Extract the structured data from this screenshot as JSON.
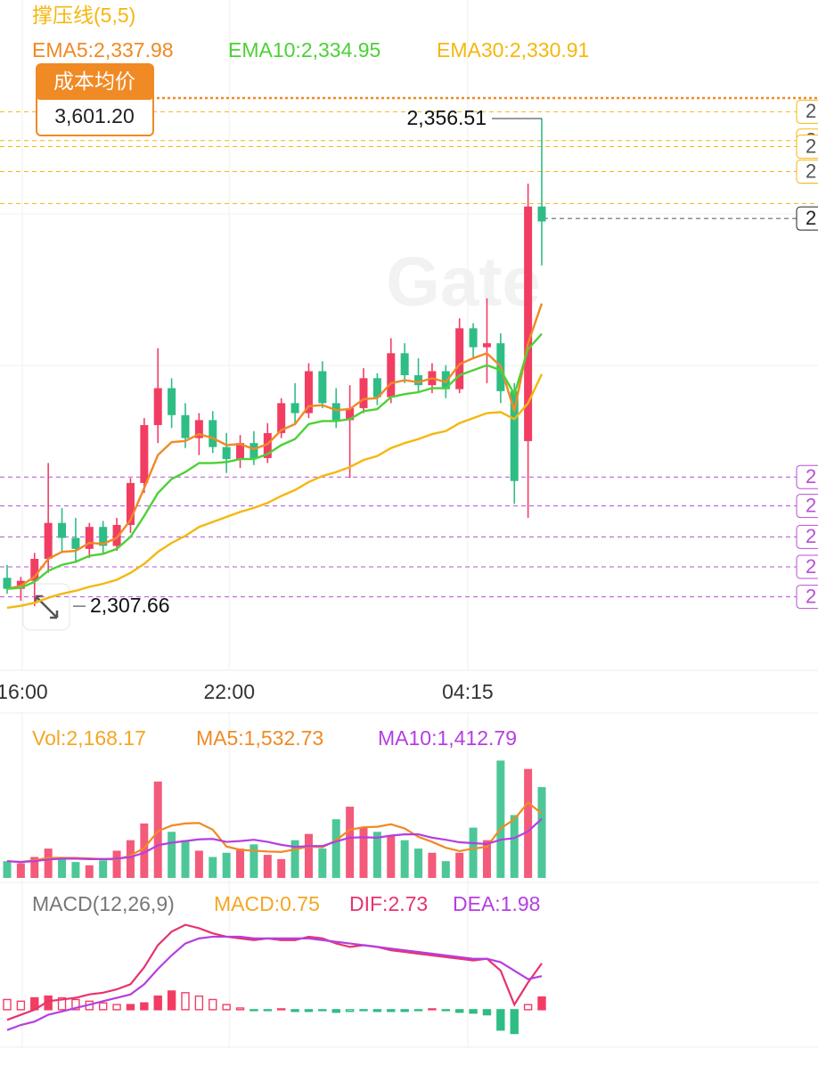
{
  "chart_data": [
    {
      "type": "candlestick",
      "title": "撑压线(5,5)",
      "watermark": "Gate",
      "up_color": "#f23d63",
      "down_color": "#2ebd85",
      "ylim": [
        2301.24,
        2368.39
      ],
      "xticks": [
        {
          "value": 1.1,
          "label": "16:00"
        },
        {
          "value": 16.2,
          "label": "22:00"
        },
        {
          "value": 33.6,
          "label": "04:15"
        }
      ],
      "open": [
        2310.5,
        2309.4,
        2310.2,
        2312.4,
        2316.0,
        2314.5,
        2313.4,
        2315.6,
        2313.7,
        2315.8,
        2320.0,
        2325.8,
        2329.5,
        2326.8,
        2324.5,
        2326.3,
        2323.6,
        2322.4,
        2324.0,
        2322.5,
        2325.0,
        2328.0,
        2327.0,
        2331.2,
        2328.0,
        2326.3,
        2327.5,
        2330.5,
        2328.6,
        2333.0,
        2330.8,
        2329.8,
        2331.2,
        2329.4,
        2335.5,
        2333.6,
        2334.0,
        2329.2,
        2324.2,
        2347.7
      ],
      "high": [
        2311.8,
        2310.6,
        2313.0,
        2322.0,
        2317.5,
        2316.5,
        2316.0,
        2316.2,
        2316.5,
        2320.5,
        2326.5,
        2333.5,
        2330.5,
        2328.0,
        2327.0,
        2327.2,
        2325.0,
        2324.8,
        2325.2,
        2326.0,
        2328.5,
        2330.0,
        2332.0,
        2332.2,
        2329.5,
        2329.8,
        2331.5,
        2331.0,
        2334.5,
        2334.0,
        2332.5,
        2332.0,
        2331.8,
        2336.5,
        2336.0,
        2338.5,
        2335.0,
        2330.0,
        2350.0,
        2356.51
      ],
      "low": [
        2308.9,
        2308.2,
        2307.66,
        2311.0,
        2313.0,
        2312.0,
        2312.5,
        2312.8,
        2313.2,
        2315.0,
        2319.0,
        2324.0,
        2325.5,
        2323.5,
        2322.8,
        2323.0,
        2321.0,
        2321.5,
        2321.8,
        2322.0,
        2324.5,
        2326.0,
        2326.5,
        2327.5,
        2325.5,
        2320.5,
        2327.0,
        2327.8,
        2328.0,
        2330.0,
        2329.0,
        2329.0,
        2328.5,
        2329.0,
        2332.5,
        2330.0,
        2328.0,
        2317.9,
        2316.5,
        2341.8
      ],
      "close": [
        2309.4,
        2310.2,
        2312.4,
        2316.0,
        2314.5,
        2313.4,
        2315.6,
        2313.7,
        2315.8,
        2320.0,
        2325.8,
        2329.5,
        2326.8,
        2324.5,
        2326.3,
        2323.6,
        2322.4,
        2324.0,
        2322.5,
        2325.0,
        2328.0,
        2327.0,
        2331.2,
        2328.0,
        2326.3,
        2327.5,
        2330.5,
        2328.6,
        2333.0,
        2330.8,
        2329.8,
        2331.2,
        2329.4,
        2335.5,
        2333.6,
        2334.0,
        2329.2,
        2320.2,
        2347.7,
        2346.2
      ],
      "lines": [
        {
          "name": "EMA5:2,337.98",
          "color": "#f08a24",
          "values": [
            2309.4,
            2309.7,
            2310.6,
            2312.4,
            2313.1,
            2313.2,
            2314.0,
            2313.9,
            2314.5,
            2316.3,
            2319.5,
            2322.8,
            2324.1,
            2324.2,
            2324.9,
            2324.5,
            2323.8,
            2323.9,
            2323.4,
            2323.9,
            2325.3,
            2325.9,
            2327.7,
            2327.8,
            2327.3,
            2327.4,
            2328.4,
            2328.5,
            2330.0,
            2330.3,
            2330.1,
            2330.5,
            2330.1,
            2331.9,
            2332.5,
            2333.0,
            2331.7,
            2327.2,
            2334.0,
            2337.98
          ]
        },
        {
          "name": "EMA10:2,334.95",
          "color": "#4cd137",
          "values": [
            2309.4,
            2309.5,
            2310.1,
            2311.2,
            2311.8,
            2312.1,
            2312.7,
            2312.9,
            2313.4,
            2314.6,
            2316.7,
            2319.0,
            2320.4,
            2321.1,
            2322.0,
            2322.0,
            2322.1,
            2322.4,
            2322.4,
            2322.9,
            2323.8,
            2324.4,
            2325.9,
            2326.2,
            2326.2,
            2326.4,
            2327.2,
            2327.4,
            2328.6,
            2328.9,
            2329.1,
            2329.5,
            2329.5,
            2330.8,
            2331.3,
            2331.8,
            2331.3,
            2328.9,
            2333.4,
            2334.95
          ]
        },
        {
          "name": "EMA30:2,330.91",
          "color": "#f5b70f",
          "values": [
            2307.5,
            2307.7,
            2308.0,
            2308.5,
            2308.9,
            2309.2,
            2309.6,
            2309.9,
            2310.3,
            2311.0,
            2311.9,
            2313.1,
            2314.0,
            2314.7,
            2315.6,
            2316.1,
            2316.6,
            2317.1,
            2317.5,
            2318.0,
            2318.7,
            2319.3,
            2320.1,
            2320.7,
            2321.1,
            2321.6,
            2322.3,
            2322.7,
            2323.5,
            2324.0,
            2324.4,
            2324.9,
            2325.2,
            2326.0,
            2326.5,
            2327.0,
            2327.1,
            2326.4,
            2328.0,
            2330.91
          ]
        }
      ],
      "high_label": "2,356.51",
      "low_label": "2,307.66",
      "cost": {
        "title": "成本均价",
        "value": 3601.2,
        "label": "3,601.20",
        "color": "#f08a24"
      },
      "resistance_color": "#f5b70f",
      "resistance_lines": [
        {
          "value": 2357.2,
          "label": "2"
        },
        {
          "value": 2354.3,
          "label": "2"
        },
        {
          "value": 2353.7,
          "label": "2"
        },
        {
          "value": 2351.2,
          "label": "2"
        },
        {
          "value": 2348.0,
          "label": "2"
        }
      ],
      "support_color": "#b84fd6",
      "support_lines": [
        {
          "value": 2320.6,
          "label": "2"
        },
        {
          "value": 2317.7,
          "label": "2"
        },
        {
          "value": 2314.6,
          "label": "2"
        },
        {
          "value": 2311.6,
          "label": "2"
        },
        {
          "value": 2308.6,
          "label": "2"
        }
      ],
      "last_price": {
        "value": 2346.5,
        "label": "2"
      }
    },
    {
      "type": "bar",
      "ylim": [
        0,
        2850
      ],
      "series": [
        {
          "name": "Vol:2,168.17",
          "color": "#f5a623",
          "values": [
            400,
            350,
            500,
            700,
            450,
            380,
            300,
            420,
            650,
            900,
            1300,
            2300,
            1100,
            900,
            650,
            500,
            600,
            700,
            800,
            550,
            450,
            900,
            1050,
            700,
            1400,
            1700,
            1200,
            1100,
            1000,
            900,
            700,
            600,
            400,
            600,
            1200,
            900,
            2800,
            1500,
            2600,
            2168.17
          ]
        },
        {
          "name": "MA5:1,532.73",
          "color": "#f08a24",
          "values": [
            400,
            380,
            420,
            480,
            480,
            476,
            466,
            450,
            440,
            534,
            714,
            1114,
            1250,
            1300,
            1310,
            1150,
            750,
            670,
            650,
            630,
            620,
            680,
            750,
            730,
            900,
            1150,
            1210,
            1220,
            1280,
            1180,
            980,
            860,
            720,
            640,
            700,
            740,
            1180,
            1400,
            1800,
            1532.73
          ]
        },
        {
          "name": "MA10:1,412.79",
          "color": "#b43fe0",
          "values": [
            400,
            380,
            400,
            440,
            460,
            460,
            450,
            450,
            460,
            500,
            600,
            780,
            840,
            880,
            920,
            930,
            860,
            880,
            910,
            860,
            790,
            740,
            760,
            760,
            870,
            960,
            970,
            960,
            1010,
            1040,
            1040,
            960,
            910,
            850,
            830,
            810,
            910,
            950,
            1110,
            1412.79
          ]
        }
      ]
    },
    {
      "type": "macd",
      "title": "MACD(12,26,9)",
      "ylim": [
        -1.95,
        5.4
      ],
      "series": [
        {
          "name": "MACD:0.75",
          "color": "#f5a623",
          "values": [
            0.6,
            0.5,
            0.7,
            0.8,
            0.7,
            0.6,
            0.5,
            0.4,
            0.3,
            0.3,
            0.4,
            0.8,
            1.1,
            1.0,
            0.8,
            0.6,
            0.3,
            0.1,
            -0.05,
            -0.05,
            0.05,
            -0.1,
            -0.1,
            -0.05,
            -0.15,
            -0.1,
            -0.05,
            -0.1,
            -0.1,
            -0.1,
            -0.05,
            0.05,
            -0.05,
            -0.15,
            -0.2,
            -0.3,
            -1.2,
            -1.4,
            0.3,
            0.75
          ]
        },
        {
          "name": "DIF:2.73",
          "color": "#e8336d",
          "values": [
            -0.6,
            -0.3,
            0.0,
            0.5,
            0.6,
            0.7,
            0.9,
            1.0,
            1.2,
            1.5,
            2.5,
            3.8,
            4.6,
            5.0,
            4.8,
            4.5,
            4.3,
            4.2,
            4.1,
            4.2,
            4.1,
            4.1,
            4.3,
            4.2,
            3.9,
            3.7,
            3.8,
            3.7,
            3.5,
            3.4,
            3.3,
            3.2,
            3.1,
            3.0,
            2.9,
            3.0,
            2.3,
            0.3,
            1.6,
            2.73
          ]
        },
        {
          "name": "DEA:1.98",
          "color": "#b43fe0",
          "values": [
            -1.2,
            -0.9,
            -0.7,
            -0.3,
            -0.1,
            0.1,
            0.3,
            0.5,
            0.7,
            0.9,
            1.5,
            2.4,
            3.2,
            3.9,
            4.2,
            4.3,
            4.3,
            4.3,
            4.2,
            4.2,
            4.2,
            4.2,
            4.2,
            4.1,
            4.0,
            3.9,
            3.8,
            3.7,
            3.6,
            3.5,
            3.4,
            3.3,
            3.2,
            3.1,
            3.0,
            3.0,
            2.8,
            2.3,
            1.8,
            1.98
          ]
        }
      ]
    }
  ]
}
